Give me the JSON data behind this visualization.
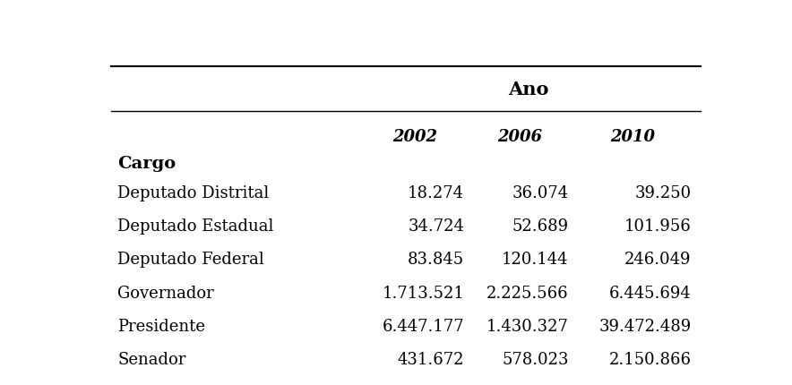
{
  "title": "Ano",
  "col_header_label": "Cargo",
  "col_headers": [
    "2002",
    "2006",
    "2010"
  ],
  "rows": [
    [
      "Deputado Distrital",
      "18.274",
      "36.074",
      "39.250"
    ],
    [
      "Deputado Estadual",
      "34.724",
      "52.689",
      "101.956"
    ],
    [
      "Deputado Federal",
      "83.845",
      "120.144",
      "246.049"
    ],
    [
      "Governador",
      "1.713.521",
      "2.225.566",
      "6.445.694"
    ],
    [
      "Presidente",
      "6.447.177",
      "1.430.327",
      "39.472.489"
    ],
    [
      "Senador",
      "431.672",
      "578.023",
      "2.150.866"
    ]
  ],
  "bg_color": "#ffffff",
  "text_color": "#000000",
  "line_color": "#000000",
  "figsize": [
    8.84,
    4.31
  ],
  "dpi": 100
}
